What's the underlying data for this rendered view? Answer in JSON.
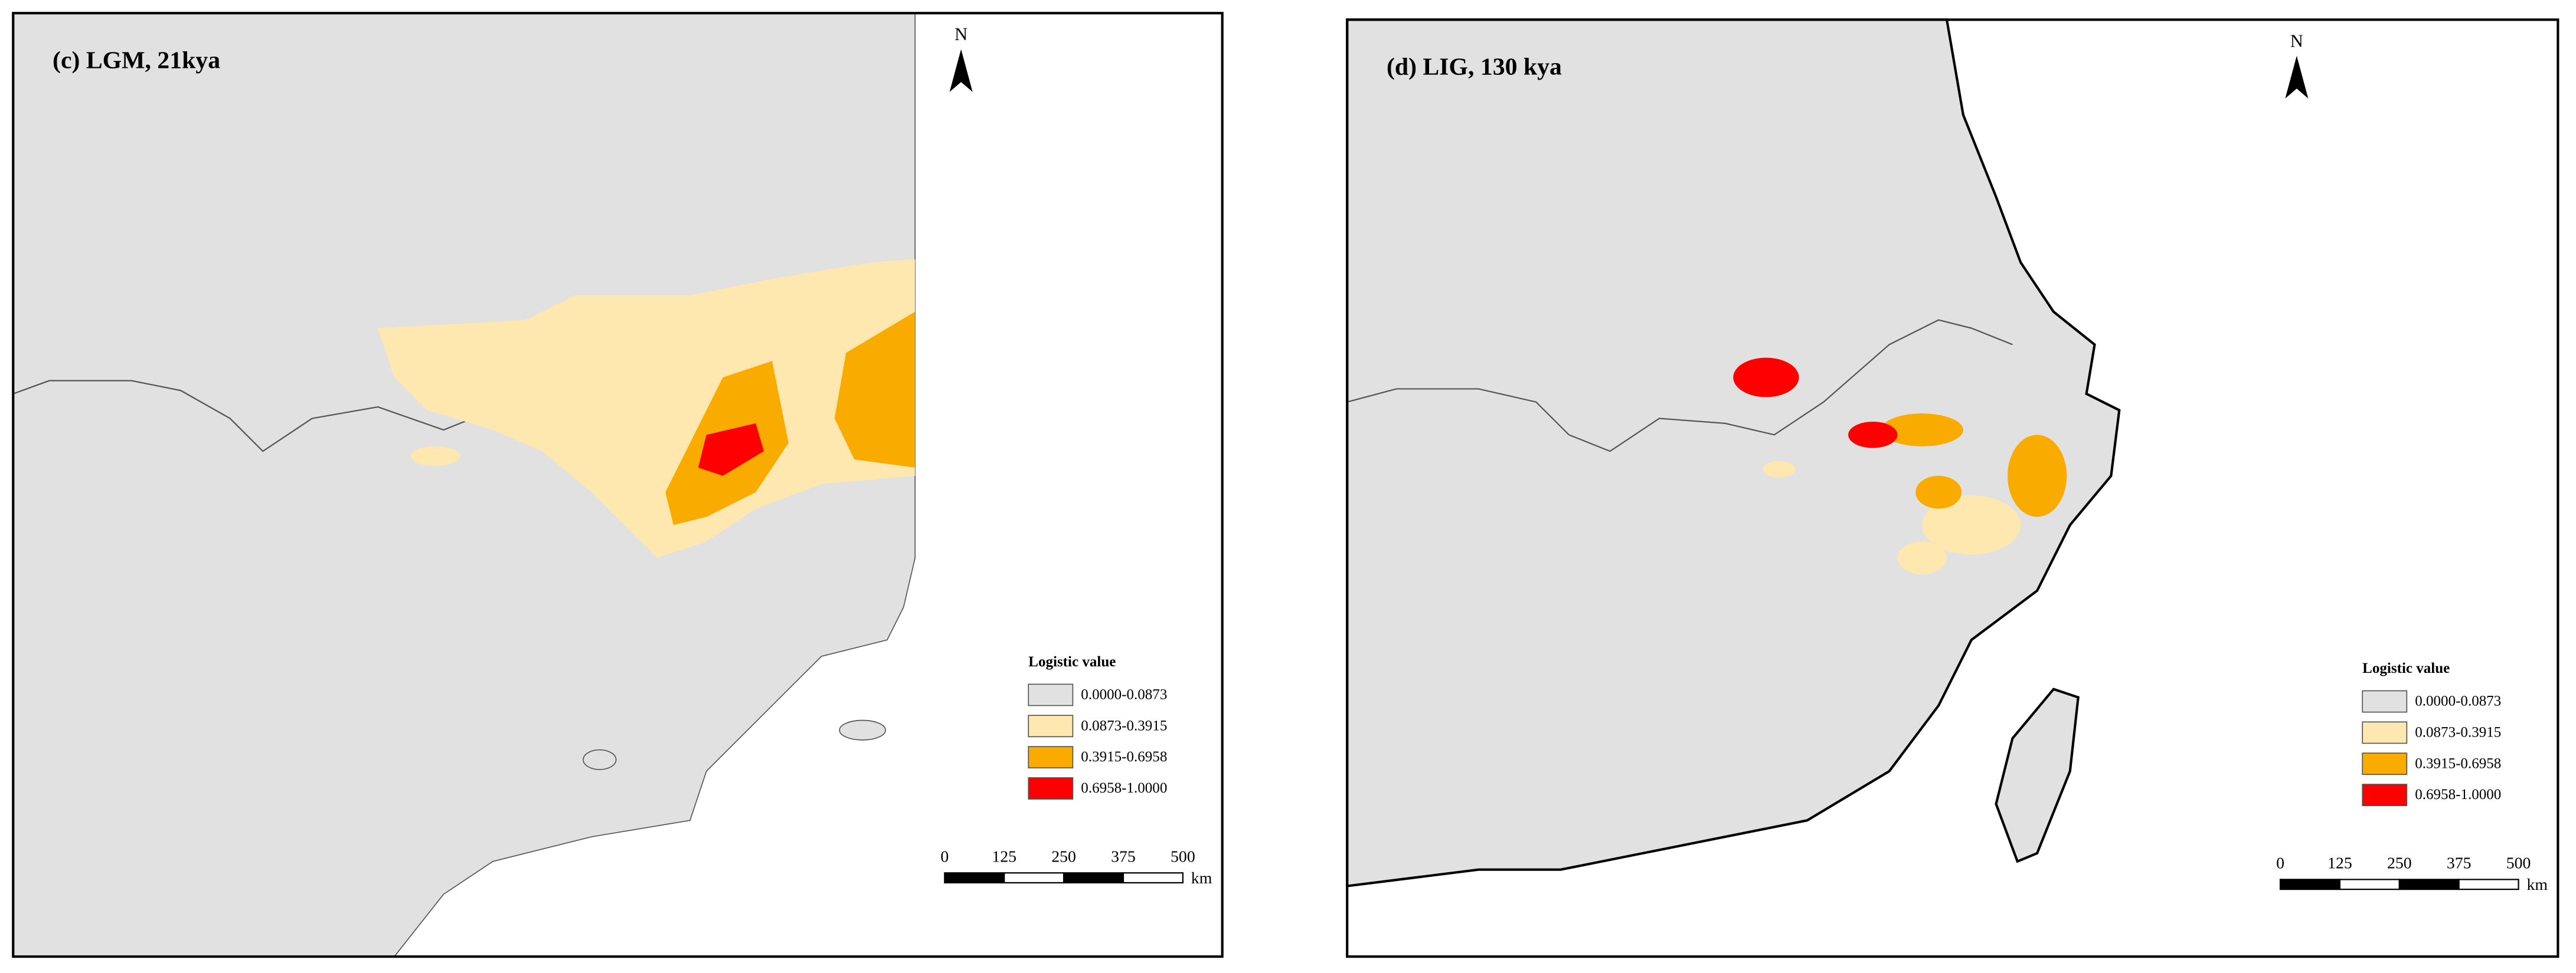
{
  "panels": [
    {
      "title": "(c) LGM, 21kya",
      "north": "N",
      "legend": {
        "title": "Logistic value",
        "items": [
          {
            "label": "0.0000-0.0873",
            "color": "#e1e1e1"
          },
          {
            "label": "0.0873-0.3915",
            "color": "#ffe8b0"
          },
          {
            "label": "0.3915-0.6958",
            "color": "#f9ab00"
          },
          {
            "label": "0.6958-1.0000",
            "color": "#ff0000"
          }
        ]
      },
      "scale": {
        "ticks": [
          "0",
          "125",
          "250",
          "375",
          "500"
        ],
        "unit": "km"
      }
    },
    {
      "title": "(d) LIG, 130 kya",
      "north": "N",
      "legend": {
        "title": "Logistic value",
        "items": [
          {
            "label": "0.0000-0.0873",
            "color": "#e1e1e1"
          },
          {
            "label": "0.0873-0.3915",
            "color": "#ffe8b0"
          },
          {
            "label": "0.3915-0.6958",
            "color": "#f9ab00"
          },
          {
            "label": "0.6958-1.0000",
            "color": "#ff0000"
          }
        ]
      },
      "scale": {
        "ticks": [
          "0",
          "125",
          "250",
          "375",
          "500"
        ],
        "unit": "km"
      }
    }
  ]
}
